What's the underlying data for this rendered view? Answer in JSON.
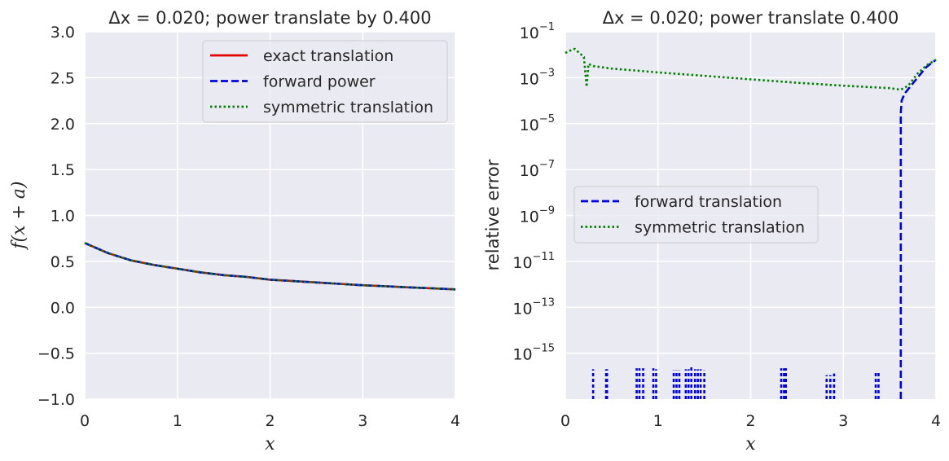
{
  "chart_data": [
    {
      "type": "line",
      "title": "Δx = 0.020; power translate by 0.400",
      "xlabel": "x",
      "ylabel": "f(x + a)",
      "xlim": [
        0,
        4
      ],
      "ylim": [
        -1.0,
        3.0
      ],
      "xticks": [
        0,
        1,
        2,
        3,
        4
      ],
      "xticklabels": [
        "0",
        "1",
        "2",
        "3",
        "4"
      ],
      "yticks": [
        -1.0,
        -0.5,
        0.0,
        0.5,
        1.0,
        1.5,
        2.0,
        2.5,
        3.0
      ],
      "yticklabels": [
        "−1.0",
        "−0.5",
        "0.0",
        "0.5",
        "1.0",
        "1.5",
        "2.0",
        "2.5",
        "3.0"
      ],
      "grid": true,
      "legend_position": "top-right",
      "series": [
        {
          "name": "exact translation",
          "color": "#e60000",
          "style": "solid",
          "x": [
            0,
            0.25,
            0.5,
            0.75,
            1,
            1.25,
            1.5,
            1.75,
            2,
            2.25,
            2.5,
            2.75,
            3,
            3.25,
            3.5,
            3.75,
            4
          ],
          "y": [
            0.7,
            0.59,
            0.51,
            0.46,
            0.42,
            0.38,
            0.35,
            0.33,
            0.3,
            0.285,
            0.27,
            0.255,
            0.24,
            0.228,
            0.217,
            0.206,
            0.195
          ]
        },
        {
          "name": "forward power",
          "color": "#0000e6",
          "style": "dashed",
          "x": [
            0,
            0.25,
            0.5,
            0.75,
            1,
            1.25,
            1.5,
            1.75,
            2,
            2.25,
            2.5,
            2.75,
            3,
            3.25,
            3.5,
            3.75,
            4
          ],
          "y": [
            0.7,
            0.59,
            0.51,
            0.46,
            0.42,
            0.38,
            0.35,
            0.33,
            0.3,
            0.285,
            0.27,
            0.255,
            0.24,
            0.228,
            0.217,
            0.206,
            0.195
          ]
        },
        {
          "name": "symmetric translation",
          "color": "#008000",
          "style": "dotted",
          "x": [
            0,
            0.25,
            0.5,
            0.75,
            1,
            1.25,
            1.5,
            1.75,
            2,
            2.25,
            2.5,
            2.75,
            3,
            3.25,
            3.5,
            3.75,
            4
          ],
          "y": [
            0.7,
            0.59,
            0.51,
            0.46,
            0.42,
            0.38,
            0.35,
            0.33,
            0.3,
            0.285,
            0.27,
            0.255,
            0.24,
            0.228,
            0.217,
            0.206,
            0.195
          ]
        }
      ]
    },
    {
      "type": "line",
      "title": "Δx = 0.020; power translate 0.400",
      "xlabel": "x",
      "ylabel": "relative error",
      "xlim": [
        0,
        4
      ],
      "ylim": [
        1e-17,
        0.1
      ],
      "yscale": "log",
      "xticks": [
        0,
        1,
        2,
        3,
        4
      ],
      "xticklabels": [
        "0",
        "1",
        "2",
        "3",
        "4"
      ],
      "yticks": [
        1e-15,
        1e-13,
        1e-11,
        1e-09,
        1e-07,
        1e-05,
        0.001,
        0.1
      ],
      "yticklabels": [
        {
          "base": "10",
          "exp": "−15"
        },
        {
          "base": "10",
          "exp": "−13"
        },
        {
          "base": "10",
          "exp": "−11"
        },
        {
          "base": "10",
          "exp": "−9"
        },
        {
          "base": "10",
          "exp": "−7"
        },
        {
          "base": "10",
          "exp": "−5"
        },
        {
          "base": "10",
          "exp": "−3"
        },
        {
          "base": "10",
          "exp": "−1"
        }
      ],
      "grid": true,
      "legend_position": "center-left",
      "series": [
        {
          "name": "forward translation",
          "color": "#0000e6",
          "style": "dashed",
          "x": [
            3.62,
            3.62,
            3.63,
            3.66,
            3.72,
            3.8,
            3.9,
            4.0
          ],
          "y": [
            1e-17,
            3e-05,
            0.0001,
            0.0002,
            0.0004,
            0.001,
            0.003,
            0.006
          ]
        },
        {
          "name": "symmetric translation",
          "color": "#008000",
          "style": "dotted",
          "x": [
            0,
            0.05,
            0.1,
            0.15,
            0.2,
            0.23,
            0.25,
            0.3,
            0.5,
            1.0,
            1.5,
            2.0,
            2.5,
            3.0,
            3.5,
            3.62,
            3.7,
            3.8,
            3.9,
            4.0
          ],
          "y": [
            0.012,
            0.015,
            0.018,
            0.012,
            0.008,
            0.0004,
            0.004,
            0.0032,
            0.0025,
            0.0017,
            0.0012,
            0.00085,
            0.0006,
            0.00045,
            0.00035,
            0.0003,
            0.00045,
            0.0015,
            0.0035,
            0.006
          ]
        },
        {
          "name": "",
          "color": "#0000e6",
          "style": "dashed",
          "spikes_x": [
            0.3,
            0.44,
            0.45,
            0.77,
            0.8,
            0.84,
            0.95,
            0.98,
            1.17,
            1.2,
            1.23,
            1.3,
            1.33,
            1.36,
            1.4,
            1.43,
            1.46,
            1.5,
            2.33,
            2.36,
            2.38,
            2.82,
            2.86,
            2.9,
            3.35,
            3.38
          ],
          "spikes_top": [
            2e-16,
            2e-16,
            2e-16,
            2.2e-16,
            2.2e-16,
            2.2e-16,
            2.2e-16,
            2e-16,
            1.8e-16,
            1.8e-16,
            1.8e-16,
            2e-16,
            2e-16,
            2.8e-16,
            2e-16,
            2e-16,
            2e-16,
            1.8e-16,
            2.2e-16,
            2.2e-16,
            2.2e-16,
            1.1e-16,
            1.1e-16,
            1.3e-16,
            1.5e-16,
            1.5e-16
          ]
        }
      ]
    }
  ]
}
